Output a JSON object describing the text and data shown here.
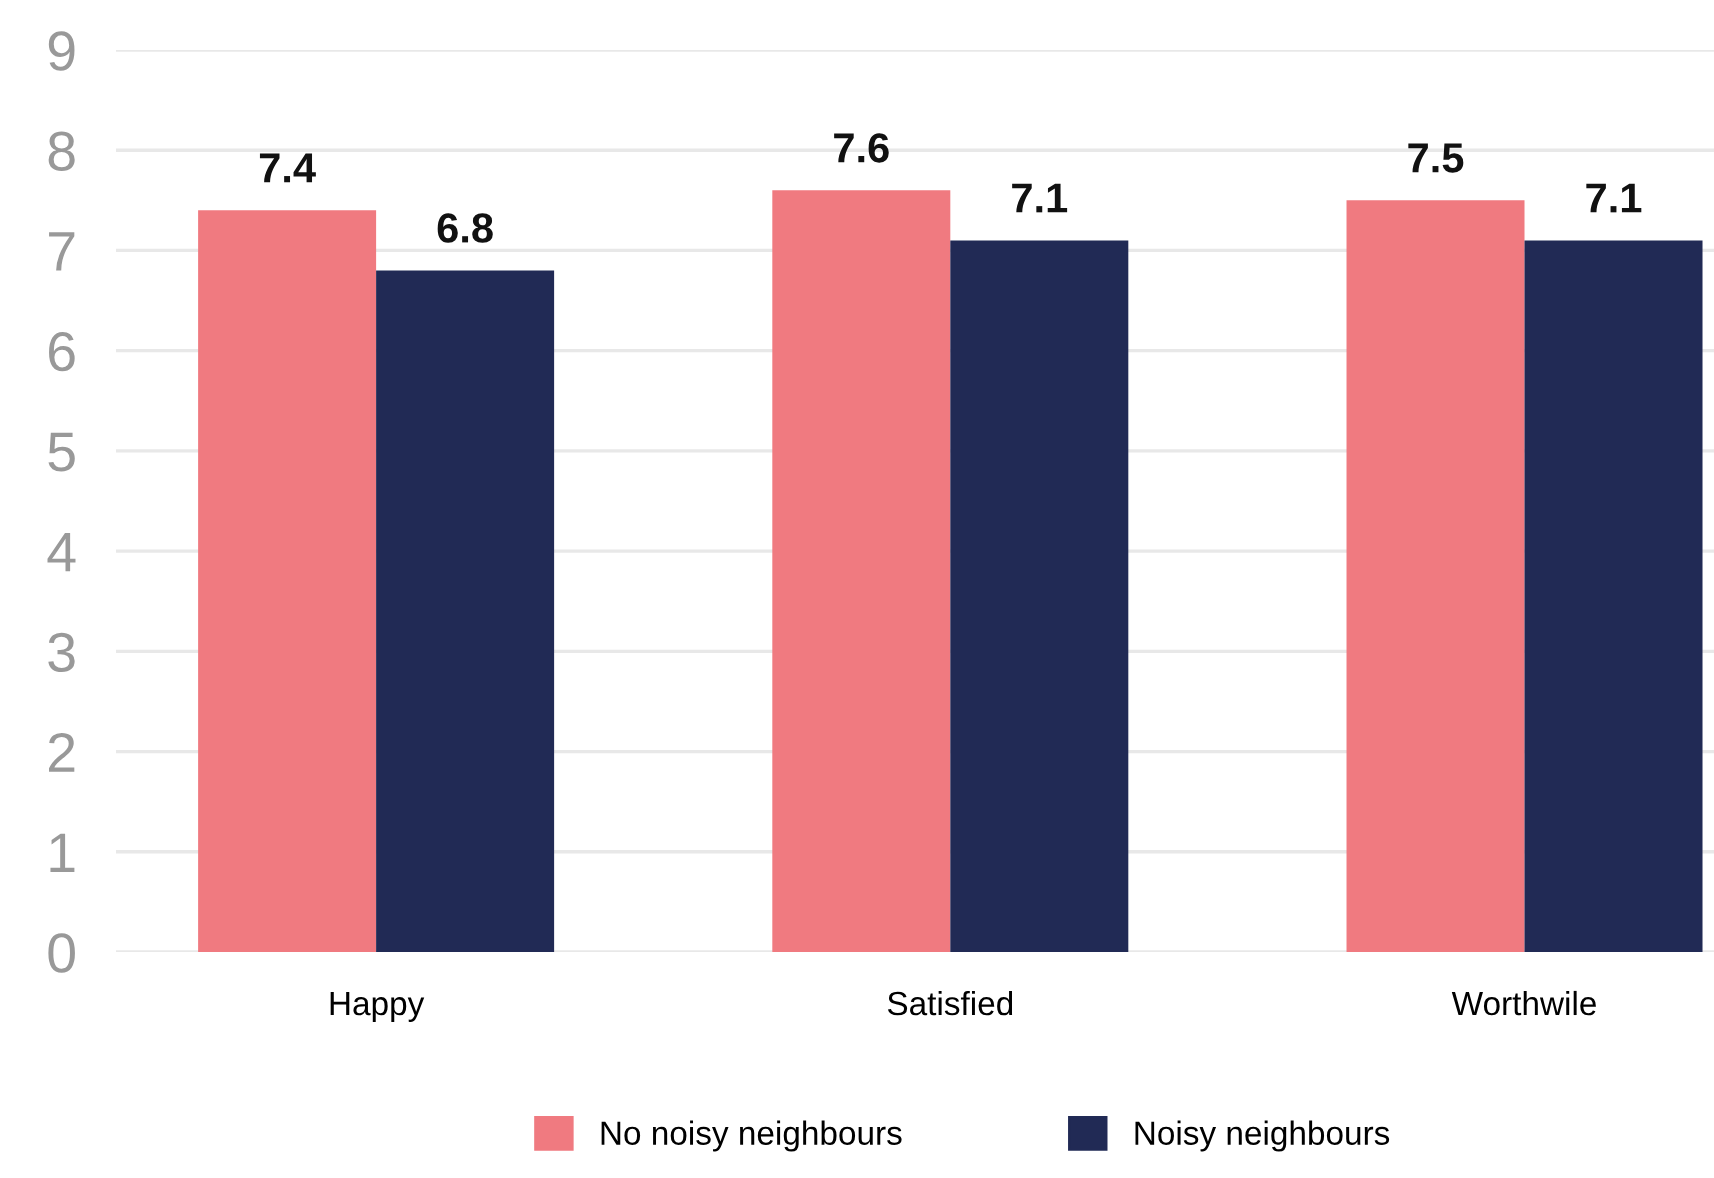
{
  "chart_data": {
    "type": "bar",
    "categories": [
      "Happy",
      "Satisfied",
      "Worthwile"
    ],
    "series": [
      {
        "name": "No noisy neighbours",
        "color": "#f07a80",
        "values": [
          7.4,
          7.6,
          7.5
        ]
      },
      {
        "name": "Noisy neighbours",
        "color": "#212a55",
        "values": [
          6.8,
          7.1,
          7.1
        ]
      }
    ],
    "ylim": [
      0,
      9
    ],
    "yticks": [
      0,
      1,
      2,
      3,
      4,
      5,
      6,
      7,
      8,
      9
    ],
    "grid": "y",
    "legend": "bottom",
    "data_labels": true
  }
}
